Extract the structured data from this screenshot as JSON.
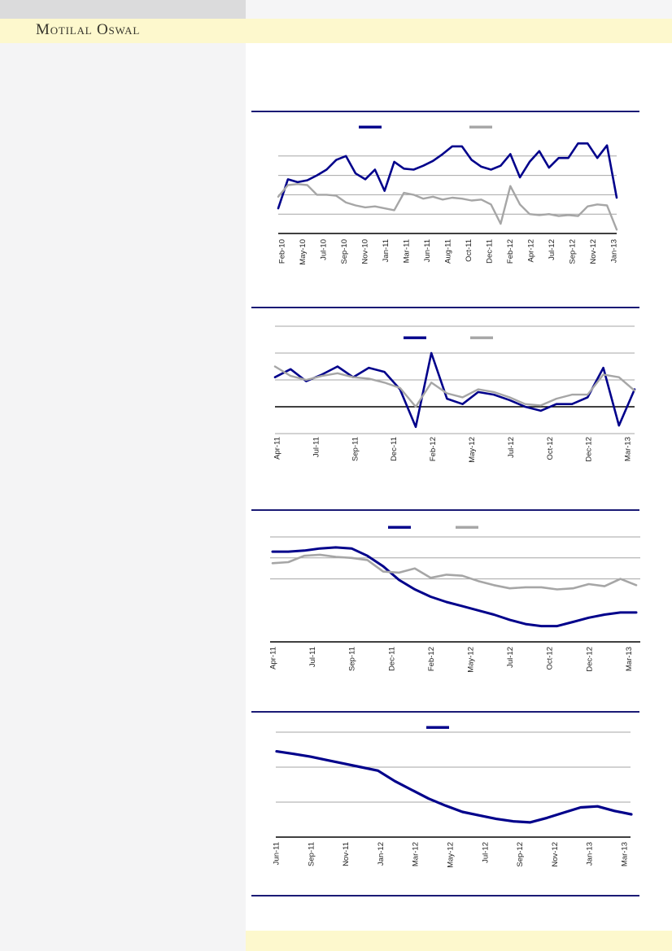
{
  "brand": {
    "logo_text": "Motilal Oswal"
  },
  "colors": {
    "navy_series": "#00008B",
    "gray_series": "#A6A6A6",
    "gridline": "#A6A6A6",
    "axis": "#000000",
    "divider_navy": "#1A1A75",
    "band_yellow": "#FDF8CD",
    "sidebar_gray": "#F4F4F5",
    "topbar_gray": "#DBDBDC",
    "tick_text": "#1F1F1F"
  },
  "chart_data": [
    {
      "type": "line",
      "title": "",
      "xlabel": "",
      "ylabel": "",
      "y_axis_tick_labels_visible": false,
      "ylim": [
        0,
        5.6
      ],
      "gridline_values": [
        1,
        2,
        3,
        4
      ],
      "axis_line_value": 0,
      "legend_position": "top-center",
      "legend": [
        {
          "label": "",
          "color": "#00008B"
        },
        {
          "label": "",
          "color": "#A6A6A6"
        }
      ],
      "x_tick_labels": [
        "Feb-10",
        "May-10",
        "Jul-10",
        "Sep-10",
        "Nov-10",
        "Jan-11",
        "Mar-11",
        "Jun-11",
        "Aug-11",
        "Oct-11",
        "Dec-11",
        "Feb-12",
        "Apr-12",
        "Jul-12",
        "Sep-12",
        "Nov-12",
        "Jan-13"
      ],
      "categories": [
        "Feb-10",
        "Mar-10",
        "Apr-10",
        "May-10",
        "Jun-10",
        "Jul-10",
        "Aug-10",
        "Sep-10",
        "Oct-10",
        "Nov-10",
        "Dec-10",
        "Jan-11",
        "Feb-11",
        "Mar-11",
        "Apr-11",
        "May-11",
        "Jun-11",
        "Jul-11",
        "Aug-11",
        "Sep-11",
        "Oct-11",
        "Nov-11",
        "Dec-11",
        "Jan-12",
        "Feb-12",
        "Mar-12",
        "Apr-12",
        "May-12",
        "Jun-12",
        "Jul-12",
        "Aug-12",
        "Sep-12",
        "Oct-12",
        "Nov-12",
        "Dec-12",
        "Jan-13"
      ],
      "series": [
        {
          "name": "",
          "color": "#00008B",
          "values": [
            1.3,
            2.8,
            2.65,
            2.75,
            3.0,
            3.3,
            3.8,
            4.0,
            3.1,
            2.8,
            3.3,
            2.2,
            3.7,
            3.35,
            3.3,
            3.5,
            3.75,
            4.1,
            4.5,
            4.5,
            3.8,
            3.45,
            3.3,
            3.5,
            4.1,
            2.9,
            3.7,
            4.25,
            3.4,
            3.9,
            3.9,
            4.65,
            4.65,
            3.9,
            4.55,
            1.85
          ]
        },
        {
          "name": "",
          "color": "#A6A6A6",
          "values": [
            1.9,
            2.5,
            2.55,
            2.5,
            2.0,
            2.0,
            1.95,
            1.6,
            1.45,
            1.35,
            1.4,
            1.3,
            1.2,
            2.1,
            2.0,
            1.8,
            1.9,
            1.75,
            1.85,
            1.8,
            1.7,
            1.75,
            1.5,
            0.5,
            2.45,
            1.5,
            1.0,
            0.95,
            1.0,
            0.9,
            0.95,
            0.9,
            1.4,
            1.5,
            1.45,
            0.2
          ]
        }
      ]
    },
    {
      "type": "line",
      "title": "",
      "xlabel": "",
      "ylabel": "",
      "y_axis_tick_labels_visible": false,
      "ylim": [
        -1.15,
        3.2
      ],
      "gridline_values": [
        -1,
        1,
        2,
        3
      ],
      "axis_line_value": 0,
      "legend_position": "top-center",
      "legend": [
        {
          "label": "",
          "color": "#00008B"
        },
        {
          "label": "",
          "color": "#A6A6A6"
        }
      ],
      "x_tick_labels": [
        "Apr-11",
        "Jul-11",
        "Sep-11",
        "Dec-11",
        "Feb-12",
        "May-12",
        "Jul-12",
        "Oct-12",
        "Dec-12",
        "Mar-13"
      ],
      "categories": [
        "Apr-11",
        "May-11",
        "Jun-11",
        "Jul-11",
        "Aug-11",
        "Sep-11",
        "Oct-11",
        "Nov-11",
        "Dec-11",
        "Jan-12",
        "Feb-12",
        "Mar-12",
        "Apr-12",
        "May-12",
        "Jun-12",
        "Jul-12",
        "Aug-12",
        "Sep-12",
        "Oct-12",
        "Nov-12",
        "Dec-12",
        "Jan-13",
        "Feb-13",
        "Mar-13"
      ],
      "series": [
        {
          "name": "",
          "color": "#00008B",
          "values": [
            1.1,
            1.4,
            0.95,
            1.2,
            1.5,
            1.1,
            1.45,
            1.3,
            0.65,
            -0.75,
            2.0,
            0.3,
            0.1,
            0.55,
            0.45,
            0.25,
            0.0,
            -0.15,
            0.1,
            0.1,
            0.35,
            1.45,
            -0.7,
            0.65
          ]
        },
        {
          "name": "",
          "color": "#A6A6A6",
          "values": [
            1.5,
            1.15,
            1.0,
            1.15,
            1.25,
            1.1,
            1.05,
            0.9,
            0.7,
            0.0,
            0.9,
            0.5,
            0.35,
            0.65,
            0.55,
            0.35,
            0.1,
            0.05,
            0.3,
            0.45,
            0.45,
            1.2,
            1.1,
            0.6
          ]
        }
      ]
    },
    {
      "type": "line",
      "title": "",
      "xlabel": "",
      "ylabel": "",
      "y_axis_tick_labels_visible": false,
      "ylim": [
        0,
        5.2
      ],
      "gridline_values": [
        3,
        4,
        5
      ],
      "axis_line_value": 0,
      "legend_position": "top-center",
      "legend": [
        {
          "label": "",
          "color": "#00008B"
        },
        {
          "label": "",
          "color": "#A6A6A6"
        }
      ],
      "x_tick_labels": [
        "Apr-11",
        "Jul-11",
        "Sep-11",
        "Dec-11",
        "Feb-12",
        "May-12",
        "Jul-12",
        "Oct-12",
        "Dec-12",
        "Mar-13"
      ],
      "categories": [
        "Apr-11",
        "May-11",
        "Jun-11",
        "Jul-11",
        "Aug-11",
        "Sep-11",
        "Oct-11",
        "Nov-11",
        "Dec-11",
        "Jan-12",
        "Feb-12",
        "Mar-12",
        "Apr-12",
        "May-12",
        "Jun-12",
        "Jul-12",
        "Aug-12",
        "Sep-12",
        "Oct-12",
        "Nov-12",
        "Dec-12",
        "Jan-13",
        "Feb-13",
        "Mar-13"
      ],
      "series": [
        {
          "name": "",
          "color": "#00008B",
          "values": [
            4.3,
            4.3,
            4.35,
            4.45,
            4.5,
            4.45,
            4.1,
            3.6,
            2.95,
            2.5,
            2.15,
            1.9,
            1.7,
            1.5,
            1.3,
            1.05,
            0.85,
            0.75,
            0.75,
            0.95,
            1.15,
            1.3,
            1.4,
            1.4
          ]
        },
        {
          "name": "",
          "color": "#A6A6A6",
          "values": [
            3.75,
            3.8,
            4.1,
            4.15,
            4.05,
            4.0,
            3.9,
            3.35,
            3.3,
            3.5,
            3.05,
            3.2,
            3.15,
            2.9,
            2.7,
            2.55,
            2.6,
            2.6,
            2.5,
            2.55,
            2.75,
            2.65,
            3.0,
            2.7
          ]
        }
      ]
    },
    {
      "type": "line",
      "title": "",
      "xlabel": "",
      "ylabel": "",
      "y_axis_tick_labels_visible": false,
      "ylim": [
        0,
        3.3
      ],
      "gridline_values": [
        1,
        2,
        3
      ],
      "axis_line_value": 0,
      "legend_position": "top-center",
      "legend": [
        {
          "label": "",
          "color": "#00008B"
        }
      ],
      "x_tick_labels": [
        "Jun-11",
        "Sep-11",
        "Nov-11",
        "Jan-12",
        "Mar-12",
        "May-12",
        "Jul-12",
        "Sep-12",
        "Nov-12",
        "Jan-13",
        "Mar-13"
      ],
      "categories": [
        "Jun-11",
        "Jul-11",
        "Aug-11",
        "Sep-11",
        "Oct-11",
        "Nov-11",
        "Dec-11",
        "Jan-12",
        "Feb-12",
        "Mar-12",
        "Apr-12",
        "May-12",
        "Jun-12",
        "Jul-12",
        "Aug-12",
        "Sep-12",
        "Oct-12",
        "Nov-12",
        "Dec-12",
        "Jan-13",
        "Feb-13",
        "Mar-13"
      ],
      "series": [
        {
          "name": "",
          "color": "#00008B",
          "values": [
            2.45,
            2.38,
            2.3,
            2.2,
            2.1,
            2.0,
            1.9,
            1.6,
            1.35,
            1.1,
            0.9,
            0.72,
            0.62,
            0.52,
            0.45,
            0.42,
            0.55,
            0.7,
            0.85,
            0.88,
            0.75,
            0.65
          ]
        }
      ]
    }
  ]
}
